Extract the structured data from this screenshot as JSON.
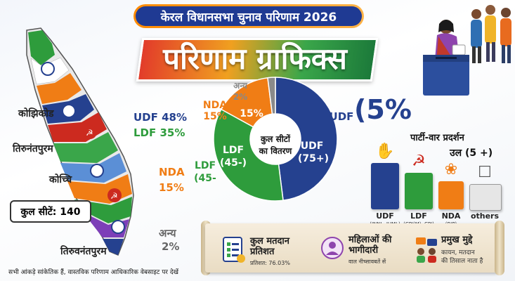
{
  "header": {
    "title": "केरल विधानसभा चुनाव परिणाम 2026",
    "banner": "परिणाम ग्राफिक्स"
  },
  "map": {
    "places": [
      "कोझिकोड",
      "तिरुनंतपुरम",
      "कोच्चि",
      "तिरुवनंतपुरम"
    ],
    "udf": "UDF 48%",
    "ldf": "LDF 35%",
    "nda_name": "NDA",
    "nda_pct": "15%",
    "other_name": "अन्य",
    "other_pct": "2%",
    "total_seats": "कुल सीटें: 140"
  },
  "donut": {
    "center_line1": "कुल सीटों",
    "center_line2": "का वितरण",
    "udf_label": "UDF",
    "udf_value": "(75+)",
    "ldf_label": "LDF",
    "ldf_value": "(45-)",
    "ldf_outer": "LDF",
    "ldf_outer_value": "(45-",
    "nda_inner": "15%",
    "nda_outer": "NDA",
    "nda_outer_pct": "15%",
    "other_outer": "अन्य",
    "other_outer_pct": "2%",
    "udf_outer": "UDF",
    "big_text": "(5%",
    "segments": [
      {
        "name": "UDF",
        "share": 48,
        "color": "#25418f"
      },
      {
        "name": "LDF",
        "share": 35,
        "color": "#2e9c3c"
      },
      {
        "name": "NDA",
        "share": 15,
        "color": "#f07d15"
      },
      {
        "name": "Other",
        "share": 2,
        "color": "#8a8a8a"
      }
    ]
  },
  "parties": {
    "title": "पार्टी-वार प्रदर्शन",
    "subtitle": "उल (5 +)",
    "items": [
      {
        "name": "UDF",
        "sub": "(INNL, IUML)",
        "color": "#25418f"
      },
      {
        "name": "LDF",
        "sub": "(CPI(M), CPI)",
        "color": "#2e9c3c"
      },
      {
        "name": "NDA",
        "sub": "(BJP)",
        "color": "#f07d15"
      },
      {
        "name": "others",
        "sub": "",
        "color": "#e6e6e6"
      }
    ]
  },
  "info": [
    {
      "title1": "कुल मतदान",
      "title2": "प्रतिशत",
      "sub": "प्रतिशत: 76.03%"
    },
    {
      "title1": "महिलाओं की",
      "title2": "भागीदारी",
      "sub": "वाल नीच्सावबतें सें"
    },
    {
      "title1": "प्रमुख मुद्दे",
      "title2": "",
      "sub1": "कायन, मतदान",
      "sub2": "की तिसाल नाता है"
    }
  ],
  "footnote": "सभी आंकड़े सांकेतिक हैं, वास्तविक परिणाम आधिकारिक वेबसाइट पर देखें"
}
